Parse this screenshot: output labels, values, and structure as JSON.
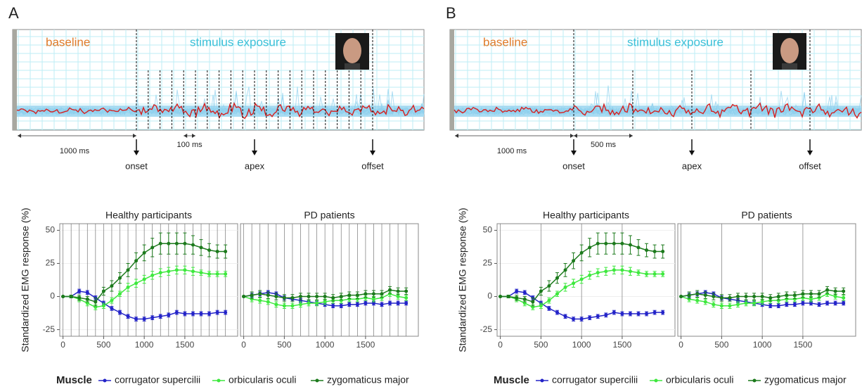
{
  "panels": [
    {
      "label": "A",
      "illustration": {
        "phases": [
          "baseline",
          "stimulus exposure"
        ],
        "durations": [
          "1000 ms",
          "100 ms"
        ],
        "events": [
          "onset",
          "apex",
          "offset"
        ]
      },
      "y_label": "Standardized EMG response (%)",
      "legend_title": "Muscle"
    },
    {
      "label": "B",
      "illustration": {
        "phases": [
          "baseline",
          "stimulus exposure"
        ],
        "durations": [
          "1000 ms",
          "500 ms"
        ],
        "events": [
          "onset",
          "apex",
          "offset"
        ]
      },
      "y_label": "Standardized EMG response (%)",
      "legend_title": "Muscle"
    }
  ],
  "chart_data": [
    {
      "type": "line",
      "title": "Healthy participants",
      "xlim": [
        -40,
        2150
      ],
      "ylim": [
        -30,
        55
      ],
      "xticks": [
        0,
        500,
        1000,
        1500
      ],
      "yticks": [
        -25,
        0,
        25,
        50
      ],
      "vlines": [
        0,
        100,
        200,
        300,
        400,
        500,
        600,
        700,
        800,
        900,
        1000,
        1100,
        1200,
        1300,
        1400,
        1500,
        1600,
        1700,
        1800,
        1900,
        2000
      ],
      "x": [
        0,
        100,
        200,
        300,
        400,
        500,
        600,
        700,
        800,
        900,
        1000,
        1100,
        1200,
        1300,
        1400,
        1500,
        1600,
        1700,
        1800,
        1900,
        2000
      ],
      "series": [
        {
          "name": "corrugator supercilii",
          "color": "#2323c8",
          "values": [
            0,
            0,
            4,
            3,
            -1,
            -5,
            -9,
            -12,
            -15,
            -17,
            -17,
            -16,
            -15,
            -14,
            -12,
            -13,
            -13,
            -13,
            -13,
            -12,
            -12
          ],
          "errors": [
            0,
            1,
            1.5,
            1.5,
            1.5,
            1.5,
            1.5,
            1.5,
            1.5,
            1.5,
            1.5,
            1.5,
            1.5,
            1.5,
            1.5,
            1.5,
            1.5,
            1.5,
            1.5,
            1.5,
            1.5
          ]
        },
        {
          "name": "orbicularis oculi",
          "color": "#3ee83e",
          "values": [
            0,
            0,
            -2,
            -5,
            -8,
            -7,
            -3,
            2,
            7,
            10,
            13,
            16,
            18,
            19,
            20,
            20,
            19,
            18,
            17,
            17,
            17
          ],
          "errors": [
            0,
            1,
            2,
            2,
            2,
            2,
            2,
            2,
            3,
            3,
            3,
            3,
            3,
            3,
            3,
            3,
            3,
            2,
            2,
            2,
            2
          ]
        },
        {
          "name": "zygomaticus major",
          "color": "#1c7a1c",
          "values": [
            0,
            0,
            -1,
            -2,
            -4,
            4,
            8,
            14,
            20,
            27,
            33,
            37,
            40,
            40,
            40,
            40,
            39,
            37,
            35,
            34,
            34
          ],
          "errors": [
            0,
            1,
            2,
            2,
            3,
            3,
            4,
            4,
            5,
            6,
            6,
            7,
            8,
            8,
            8,
            8,
            7,
            6,
            5,
            5,
            5
          ]
        }
      ]
    },
    {
      "type": "line",
      "title": "PD patients",
      "xlim": [
        -40,
        2150
      ],
      "ylim": [
        -30,
        55
      ],
      "xticks": [
        0,
        500,
        1000,
        1500
      ],
      "vlines": [
        0,
        100,
        200,
        300,
        400,
        500,
        600,
        700,
        800,
        900,
        1000,
        1100,
        1200,
        1300,
        1400,
        1500,
        1600,
        1700,
        1800,
        1900,
        2000
      ],
      "x": [
        0,
        100,
        200,
        300,
        400,
        500,
        600,
        700,
        800,
        900,
        1000,
        1100,
        1200,
        1300,
        1400,
        1500,
        1600,
        1700,
        1800,
        1900,
        2000
      ],
      "series": [
        {
          "name": "corrugator supercilii",
          "color": "#2323c8",
          "values": [
            0,
            1,
            2,
            3,
            2,
            -1,
            -2,
            -3,
            -4,
            -5,
            -6,
            -7,
            -7,
            -6,
            -6,
            -5,
            -5,
            -6,
            -5,
            -5,
            -5
          ],
          "errors": [
            0,
            1.5,
            1.5,
            1.5,
            1.5,
            1.5,
            1.5,
            1.5,
            1.5,
            1.5,
            1.5,
            1.5,
            1.5,
            1.5,
            1.5,
            1.5,
            1.5,
            1.5,
            1.5,
            1.5,
            1.5
          ]
        },
        {
          "name": "orbicularis oculi",
          "color": "#3ee83e",
          "values": [
            0,
            -2,
            -3,
            -4,
            -6,
            -7,
            -7,
            -6,
            -5,
            -5,
            -4,
            -3,
            -3,
            -2,
            -2,
            -1,
            -2,
            -1,
            2,
            0,
            -1
          ],
          "errors": [
            0,
            2,
            2,
            2,
            2,
            2,
            2,
            2,
            2,
            2,
            2,
            2,
            2,
            2,
            2,
            2,
            2,
            2,
            2,
            2,
            2
          ]
        },
        {
          "name": "zygomaticus major",
          "color": "#1c7a1c",
          "values": [
            0,
            1,
            2,
            1,
            0,
            -1,
            -1,
            0,
            0,
            0,
            0,
            -1,
            0,
            1,
            1,
            2,
            2,
            2,
            5,
            4,
            4
          ],
          "errors": [
            0,
            2.5,
            2.5,
            2.5,
            2.5,
            2.5,
            2.5,
            2.5,
            2.5,
            2.5,
            2.5,
            2.5,
            2.5,
            2.5,
            2.5,
            2.5,
            2.5,
            2.5,
            2.5,
            2.5,
            2.5
          ]
        }
      ]
    },
    {
      "type": "line",
      "title": "Healthy participants",
      "xlim": [
        -40,
        2150
      ],
      "ylim": [
        -30,
        55
      ],
      "xticks": [
        0,
        500,
        1000,
        1500
      ],
      "yticks": [
        -25,
        0,
        25,
        50
      ],
      "vlines": [
        0,
        500,
        1000,
        1500
      ],
      "x": [
        0,
        100,
        200,
        300,
        400,
        500,
        600,
        700,
        800,
        900,
        1000,
        1100,
        1200,
        1300,
        1400,
        1500,
        1600,
        1700,
        1800,
        1900,
        2000
      ],
      "series": [
        {
          "name": "corrugator supercilii",
          "color": "#2323c8",
          "values": [
            0,
            0,
            4,
            3,
            -1,
            -5,
            -9,
            -12,
            -15,
            -17,
            -17,
            -16,
            -15,
            -14,
            -12,
            -13,
            -13,
            -13,
            -13,
            -12,
            -12
          ],
          "errors": [
            0,
            1,
            1.5,
            1.5,
            1.5,
            1.5,
            1.5,
            1.5,
            1.5,
            1.5,
            1.5,
            1.5,
            1.5,
            1.5,
            1.5,
            1.5,
            1.5,
            1.5,
            1.5,
            1.5,
            1.5
          ]
        },
        {
          "name": "orbicularis oculi",
          "color": "#3ee83e",
          "values": [
            0,
            0,
            -2,
            -5,
            -8,
            -7,
            -3,
            2,
            7,
            10,
            13,
            16,
            18,
            19,
            20,
            20,
            19,
            18,
            17,
            17,
            17
          ],
          "errors": [
            0,
            1,
            2,
            2,
            2,
            2,
            2,
            2,
            3,
            3,
            3,
            3,
            3,
            3,
            3,
            3,
            3,
            2,
            2,
            2,
            2
          ]
        },
        {
          "name": "zygomaticus major",
          "color": "#1c7a1c",
          "values": [
            0,
            0,
            -1,
            -2,
            -4,
            4,
            8,
            14,
            20,
            27,
            33,
            37,
            40,
            40,
            40,
            40,
            39,
            37,
            35,
            34,
            34
          ],
          "errors": [
            0,
            1,
            2,
            2,
            3,
            3,
            4,
            4,
            5,
            6,
            6,
            7,
            8,
            8,
            8,
            8,
            7,
            6,
            5,
            5,
            5
          ]
        }
      ]
    },
    {
      "type": "line",
      "title": "PD patients",
      "xlim": [
        -40,
        2150
      ],
      "ylim": [
        -30,
        55
      ],
      "xticks": [
        0,
        500,
        1000,
        1500
      ],
      "vlines": [
        0,
        500,
        1000,
        1500
      ],
      "x": [
        0,
        100,
        200,
        300,
        400,
        500,
        600,
        700,
        800,
        900,
        1000,
        1100,
        1200,
        1300,
        1400,
        1500,
        1600,
        1700,
        1800,
        1900,
        2000
      ],
      "series": [
        {
          "name": "corrugator supercilii",
          "color": "#2323c8",
          "values": [
            0,
            1,
            2,
            3,
            2,
            -1,
            -2,
            -3,
            -4,
            -5,
            -6,
            -7,
            -7,
            -6,
            -6,
            -5,
            -5,
            -6,
            -5,
            -5,
            -5
          ],
          "errors": [
            0,
            1.5,
            1.5,
            1.5,
            1.5,
            1.5,
            1.5,
            1.5,
            1.5,
            1.5,
            1.5,
            1.5,
            1.5,
            1.5,
            1.5,
            1.5,
            1.5,
            1.5,
            1.5,
            1.5,
            1.5
          ]
        },
        {
          "name": "orbicularis oculi",
          "color": "#3ee83e",
          "values": [
            0,
            -2,
            -3,
            -4,
            -6,
            -7,
            -7,
            -6,
            -5,
            -5,
            -4,
            -3,
            -3,
            -2,
            -2,
            -1,
            -2,
            -1,
            2,
            0,
            -1
          ],
          "errors": [
            0,
            2,
            2,
            2,
            2,
            2,
            2,
            2,
            2,
            2,
            2,
            2,
            2,
            2,
            2,
            2,
            2,
            2,
            2,
            2,
            2
          ]
        },
        {
          "name": "zygomaticus major",
          "color": "#1c7a1c",
          "values": [
            0,
            1,
            2,
            1,
            0,
            -1,
            -1,
            0,
            0,
            0,
            0,
            -1,
            0,
            1,
            1,
            2,
            2,
            2,
            5,
            4,
            4
          ],
          "errors": [
            0,
            2.5,
            2.5,
            2.5,
            2.5,
            2.5,
            2.5,
            2.5,
            2.5,
            2.5,
            2.5,
            2.5,
            2.5,
            2.5,
            2.5,
            2.5,
            2.5,
            2.5,
            2.5,
            2.5,
            2.5
          ]
        }
      ]
    }
  ]
}
